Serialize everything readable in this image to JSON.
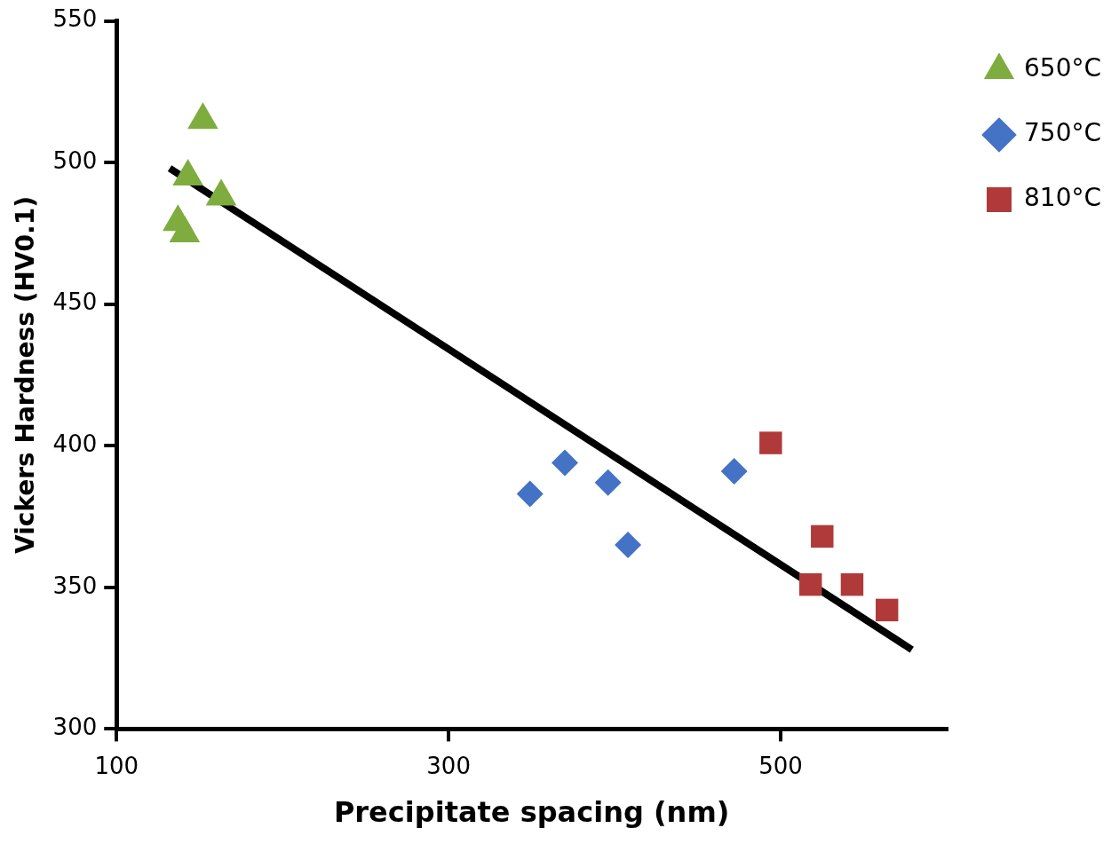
{
  "chart_data": {
    "type": "scatter",
    "xlabel": "Precipitate spacing (nm)",
    "ylabel": "Vickers Hardness (HV0.1)",
    "xlim": [
      100,
      600
    ],
    "xticks": [
      100,
      300,
      500
    ],
    "ylim": [
      300,
      550
    ],
    "yticks": [
      300,
      350,
      400,
      450,
      500,
      550
    ],
    "grid": false,
    "legend": "top right",
    "series": [
      {
        "name": "650°C",
        "color": "#7fac3f",
        "marker": "triangle",
        "x": [
          152,
          143,
          163,
          137,
          141
        ],
        "values": [
          515,
          495,
          488,
          479,
          475
        ]
      },
      {
        "name": "750°C",
        "color": "#4472c4",
        "marker": "diamond",
        "x": [
          349,
          370,
          396,
          408,
          472
        ],
        "values": [
          383,
          394,
          387,
          365,
          391
        ]
      },
      {
        "name": "810°C",
        "color": "#b03a3a",
        "marker": "square",
        "x": [
          494,
          525,
          518,
          543,
          564
        ],
        "values": [
          401,
          368,
          351,
          351,
          342
        ]
      },
      {
        "type": "line",
        "color": "#000000",
        "marker": "none",
        "x": [
          132,
          579
        ],
        "values": [
          498,
          328
        ]
      }
    ]
  }
}
